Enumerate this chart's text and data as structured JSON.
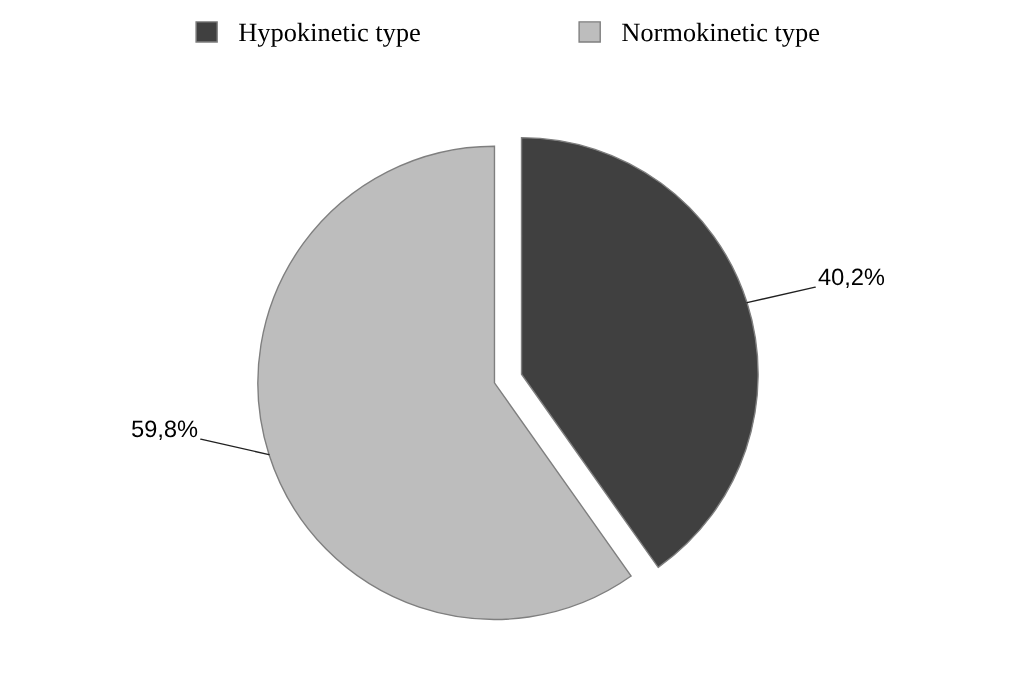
{
  "chart_data": {
    "type": "pie",
    "categories": [
      "Hypokinetic type",
      "Normokinetic type"
    ],
    "values": [
      40.2,
      59.8
    ],
    "colors": [
      "#404040",
      "#bdbdbd"
    ],
    "value_labels": [
      "40,2%",
      "59,8%"
    ],
    "legend": "top"
  }
}
